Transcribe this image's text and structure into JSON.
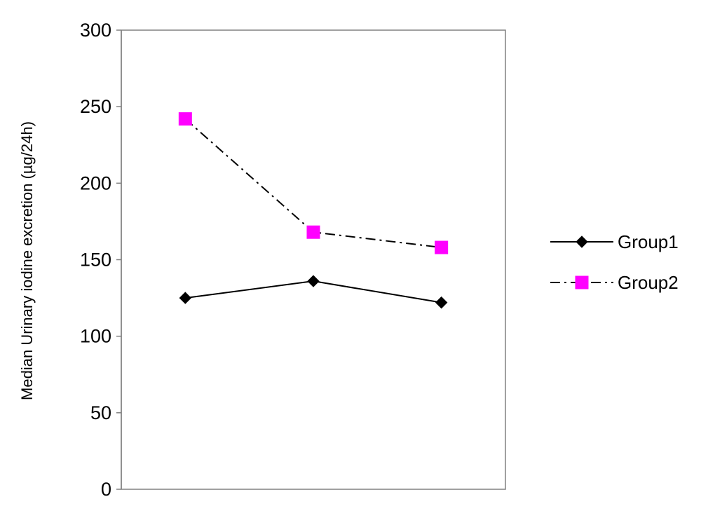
{
  "chart_data": {
    "type": "line",
    "title": "",
    "xlabel": "",
    "ylabel": "Median Urinary iodine excretion (µg/24h)",
    "ylim": [
      0,
      300
    ],
    "yticks": [
      0,
      50,
      100,
      150,
      200,
      250,
      300
    ],
    "x": [
      1,
      2,
      3
    ],
    "grid": false,
    "legend_position": "right",
    "series": [
      {
        "name": "Group1",
        "values": [
          125,
          136,
          122
        ],
        "color": "#000000",
        "marker": "diamond",
        "line_style": "solid"
      },
      {
        "name": "Group2",
        "values": [
          242,
          168,
          158
        ],
        "color": "#ff00ff",
        "marker": "square",
        "line_style": "dash-dot"
      }
    ]
  }
}
